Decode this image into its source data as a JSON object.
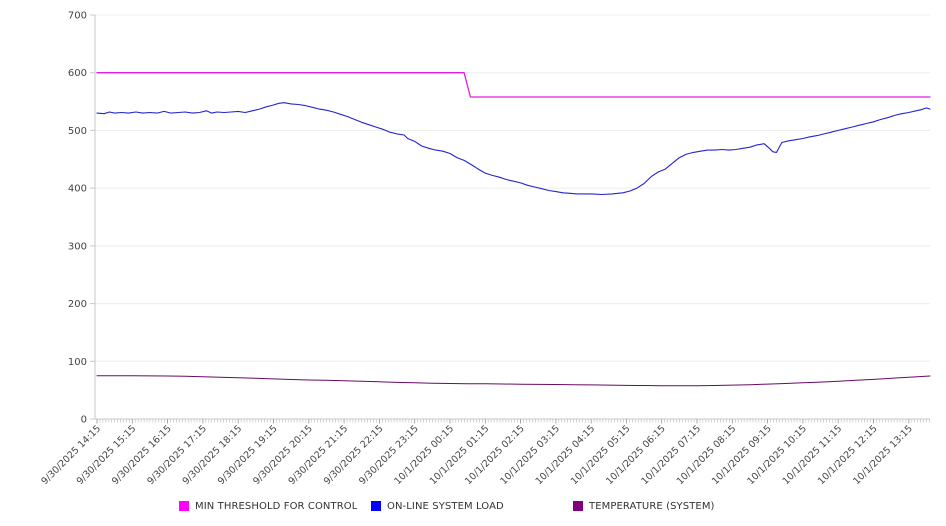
{
  "page": {
    "background": "#ffffff"
  },
  "colors": {
    "grid": "#ececec",
    "axis": "#c8c8c8",
    "major_tick": "#999999",
    "minor_tick": "#bbbbbb",
    "tick_text": "#444444",
    "legend_text": "#333333"
  },
  "chart_data": {
    "type": "line",
    "title": "",
    "xlabel": "",
    "ylabel": "",
    "grid": true,
    "legend_position": "bottom",
    "y_axis": {
      "min": 0,
      "max": 700,
      "step": 100,
      "tick_labels": [
        "0",
        "100",
        "200",
        "300",
        "400",
        "500",
        "600",
        "700"
      ]
    },
    "x_axis": {
      "hours_span": 23.6,
      "minor_ticks_per_hour": 12,
      "tick_labels": [
        "9/30/2025 14:15",
        "9/30/2025 15:15",
        "9/30/2025 16:15",
        "9/30/2025 17:15",
        "9/30/2025 18:15",
        "9/30/2025 19:15",
        "9/30/2025 20:15",
        "9/30/2025 21:15",
        "9/30/2025 22:15",
        "9/30/2025 23:15",
        "10/1/2025 00:15",
        "10/1/2025 01:15",
        "10/1/2025 02:15",
        "10/1/2025 03:15",
        "10/1/2025 04:15",
        "10/1/2025 05:15",
        "10/1/2025 06:15",
        "10/1/2025 07:15",
        "10/1/2025 08:15",
        "10/1/2025 09:15",
        "10/1/2025 10:15",
        "10/1/2025 11:15",
        "10/1/2025 12:15",
        "10/1/2025 13:15"
      ]
    },
    "series": [
      {
        "name": "MIN THRESHOLD FOR CONTROL",
        "color": "#e11de1",
        "legend_color": "#ff00ff",
        "stroke_width": 1.3,
        "points": [
          [
            0,
            600
          ],
          [
            10.4,
            600
          ],
          [
            10.58,
            558
          ],
          [
            23.6,
            558
          ]
        ]
      },
      {
        "name": "ON-LINE SYSTEM LOAD",
        "color": "#2424cd",
        "legend_color": "#0000ff",
        "stroke_width": 1.1,
        "points": [
          [
            0,
            530
          ],
          [
            0.2,
            529
          ],
          [
            0.35,
            532
          ],
          [
            0.5,
            530
          ],
          [
            0.7,
            531
          ],
          [
            0.9,
            530
          ],
          [
            1.1,
            532
          ],
          [
            1.3,
            530
          ],
          [
            1.5,
            531
          ],
          [
            1.7,
            530
          ],
          [
            1.9,
            533
          ],
          [
            2.1,
            530
          ],
          [
            2.3,
            531
          ],
          [
            2.5,
            532
          ],
          [
            2.7,
            530
          ],
          [
            2.9,
            531
          ],
          [
            3.1,
            534
          ],
          [
            3.25,
            530
          ],
          [
            3.4,
            532
          ],
          [
            3.6,
            531
          ],
          [
            3.8,
            532
          ],
          [
            4,
            533
          ],
          [
            4.2,
            531
          ],
          [
            4.4,
            534
          ],
          [
            4.6,
            537
          ],
          [
            4.8,
            541
          ],
          [
            5,
            544
          ],
          [
            5.15,
            547
          ],
          [
            5.3,
            548
          ],
          [
            5.5,
            546
          ],
          [
            5.7,
            545
          ],
          [
            5.9,
            543
          ],
          [
            6.1,
            540
          ],
          [
            6.3,
            537
          ],
          [
            6.5,
            535
          ],
          [
            6.7,
            532
          ],
          [
            6.9,
            528
          ],
          [
            7.1,
            524
          ],
          [
            7.3,
            519
          ],
          [
            7.5,
            514
          ],
          [
            7.7,
            510
          ],
          [
            7.9,
            506
          ],
          [
            8.1,
            502
          ],
          [
            8.3,
            497
          ],
          [
            8.5,
            494
          ],
          [
            8.7,
            492
          ],
          [
            8.8,
            486
          ],
          [
            9,
            481
          ],
          [
            9.2,
            473
          ],
          [
            9.4,
            469
          ],
          [
            9.6,
            466
          ],
          [
            9.8,
            464
          ],
          [
            10,
            460
          ],
          [
            10.2,
            453
          ],
          [
            10.4,
            448
          ],
          [
            10.6,
            441
          ],
          [
            10.8,
            433
          ],
          [
            11,
            426
          ],
          [
            11.2,
            422
          ],
          [
            11.4,
            419
          ],
          [
            11.6,
            415
          ],
          [
            11.8,
            412
          ],
          [
            12,
            409
          ],
          [
            12.2,
            405
          ],
          [
            12.4,
            402
          ],
          [
            12.6,
            399
          ],
          [
            12.8,
            396
          ],
          [
            13,
            394
          ],
          [
            13.2,
            392
          ],
          [
            13.4,
            391
          ],
          [
            13.6,
            390
          ],
          [
            13.8,
            390
          ],
          [
            14,
            390
          ],
          [
            14.3,
            389
          ],
          [
            14.6,
            390
          ],
          [
            14.9,
            392
          ],
          [
            15.1,
            395
          ],
          [
            15.3,
            400
          ],
          [
            15.5,
            408
          ],
          [
            15.7,
            420
          ],
          [
            15.9,
            428
          ],
          [
            16.1,
            433
          ],
          [
            16.3,
            443
          ],
          [
            16.5,
            453
          ],
          [
            16.7,
            459
          ],
          [
            16.9,
            462
          ],
          [
            17.1,
            464
          ],
          [
            17.3,
            466
          ],
          [
            17.5,
            466
          ],
          [
            17.7,
            467
          ],
          [
            17.9,
            466
          ],
          [
            18.1,
            467
          ],
          [
            18.3,
            469
          ],
          [
            18.5,
            471
          ],
          [
            18.7,
            475
          ],
          [
            18.9,
            477
          ],
          [
            19.05,
            469
          ],
          [
            19.15,
            463
          ],
          [
            19.25,
            462
          ],
          [
            19.4,
            479
          ],
          [
            19.6,
            482
          ],
          [
            19.8,
            484
          ],
          [
            20,
            486
          ],
          [
            20.2,
            489
          ],
          [
            20.4,
            491
          ],
          [
            20.6,
            494
          ],
          [
            20.8,
            497
          ],
          [
            21,
            500
          ],
          [
            21.2,
            503
          ],
          [
            21.4,
            506
          ],
          [
            21.6,
            509
          ],
          [
            21.8,
            512
          ],
          [
            22,
            515
          ],
          [
            22.2,
            519
          ],
          [
            22.4,
            522
          ],
          [
            22.6,
            526
          ],
          [
            22.8,
            529
          ],
          [
            23,
            531
          ],
          [
            23.2,
            534
          ],
          [
            23.35,
            536
          ],
          [
            23.5,
            539
          ],
          [
            23.6,
            537
          ]
        ]
      },
      {
        "name": "TEMPERATURE (SYSTEM)",
        "color": "#670b67",
        "legend_color": "#800080",
        "stroke_width": 1,
        "points": [
          [
            0,
            75
          ],
          [
            0.5,
            75
          ],
          [
            1,
            75
          ],
          [
            1.5,
            74.7
          ],
          [
            2,
            74.5
          ],
          [
            2.5,
            74
          ],
          [
            3,
            73.3
          ],
          [
            3.5,
            72.5
          ],
          [
            4,
            71.5
          ],
          [
            4.5,
            70.5
          ],
          [
            5,
            69.5
          ],
          [
            5.5,
            68.5
          ],
          [
            6,
            67.5
          ],
          [
            6.5,
            67
          ],
          [
            7,
            66.3
          ],
          [
            7.5,
            65.5
          ],
          [
            8,
            64.5
          ],
          [
            8.5,
            63.5
          ],
          [
            9,
            62.7
          ],
          [
            9.5,
            62
          ],
          [
            10,
            61.5
          ],
          [
            10.5,
            61.2
          ],
          [
            11,
            61
          ],
          [
            11.5,
            60.7
          ],
          [
            12,
            60.3
          ],
          [
            12.5,
            60
          ],
          [
            13,
            59.7
          ],
          [
            13.5,
            59.3
          ],
          [
            14,
            59
          ],
          [
            14.5,
            58.7
          ],
          [
            15,
            58.3
          ],
          [
            15.5,
            58
          ],
          [
            16,
            57.7
          ],
          [
            16.5,
            57.5
          ],
          [
            17,
            57.5
          ],
          [
            17.5,
            58
          ],
          [
            18,
            58.7
          ],
          [
            18.5,
            59.5
          ],
          [
            19,
            60.5
          ],
          [
            19.5,
            61.5
          ],
          [
            20,
            62.7
          ],
          [
            20.5,
            64
          ],
          [
            21,
            65.5
          ],
          [
            21.5,
            67
          ],
          [
            22,
            68.7
          ],
          [
            22.5,
            70.5
          ],
          [
            23,
            72.5
          ],
          [
            23.3,
            73.5
          ],
          [
            23.6,
            74.5
          ]
        ]
      }
    ]
  }
}
